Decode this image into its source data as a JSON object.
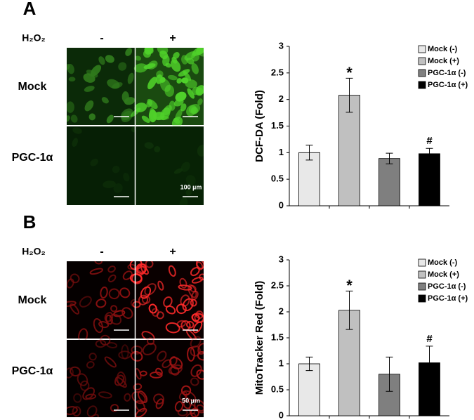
{
  "figure": {
    "panels": [
      {
        "label": "A",
        "condition": "H₂O₂",
        "columns": [
          "-",
          "+"
        ],
        "rows": [
          "Mock",
          "PGC-1α"
        ],
        "scale_bar": "100 µm"
      },
      {
        "label": "B",
        "condition": "H₂O₂",
        "columns": [
          "-",
          "+"
        ],
        "rows": [
          "Mock",
          "PGC-1α"
        ],
        "scale_bar": "50 µm"
      }
    ]
  },
  "chart_data": [
    {
      "type": "bar",
      "y_label": "DCF-DA (Fold)",
      "ylim": [
        0,
        3
      ],
      "yticks": [
        0,
        0.5,
        1,
        1.5,
        2,
        2.5,
        3
      ],
      "legend": "upper right",
      "series": [
        {
          "name": "Mock (-)",
          "color": "#e8e8e8",
          "values": [
            1.0
          ],
          "errors": [
            0.14
          ]
        },
        {
          "name": "Mock (+)",
          "color": "#c0c0c0",
          "values": [
            2.08
          ],
          "errors": [
            0.32
          ]
        },
        {
          "name": "PGC-1α (-)",
          "color": "#7f7f7f",
          "values": [
            0.89
          ],
          "errors": [
            0.1
          ]
        },
        {
          "name": "PGC-1α (+)",
          "color": "#000000",
          "values": [
            0.98
          ],
          "errors": [
            0.1
          ]
        }
      ],
      "annotations": [
        {
          "text": "*",
          "series": "Mock (+)"
        },
        {
          "text": "#",
          "series": "PGC-1α (+)"
        }
      ]
    },
    {
      "type": "bar",
      "y_label": "MitoTracker Red (Fold)",
      "ylim": [
        0,
        3
      ],
      "yticks": [
        0,
        0.5,
        1,
        1.5,
        2,
        2.5,
        3
      ],
      "legend": "upper right",
      "series": [
        {
          "name": "Mock (-)",
          "color": "#e8e8e8",
          "values": [
            1.0
          ],
          "errors": [
            0.13
          ]
        },
        {
          "name": "Mock (+)",
          "color": "#c0c0c0",
          "values": [
            2.03
          ],
          "errors": [
            0.37
          ]
        },
        {
          "name": "PGC-1α (-)",
          "color": "#7f7f7f",
          "values": [
            0.8
          ],
          "errors": [
            0.33
          ]
        },
        {
          "name": "PGC-1α (+)",
          "color": "#000000",
          "values": [
            1.02
          ],
          "errors": [
            0.32
          ]
        }
      ],
      "annotations": [
        {
          "text": "*",
          "series": "Mock (+)"
        },
        {
          "text": "#",
          "series": "PGC-1α (+)"
        }
      ]
    }
  ]
}
